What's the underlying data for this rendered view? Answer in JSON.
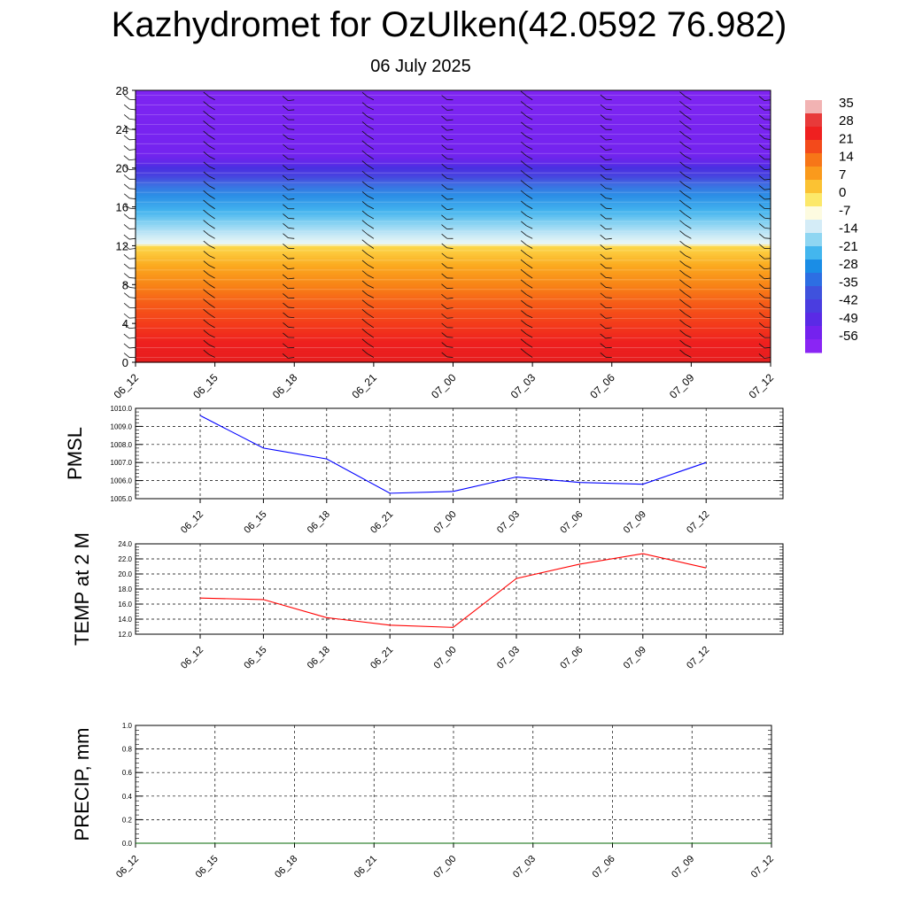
{
  "title": "Kazhydromet for OzUlken(42.0592 76.982)",
  "subtitle": "06 July 2025",
  "chart_data": [
    {
      "type": "heatmap",
      "name": "cross-section",
      "x_ticks": [
        "06_12",
        "06_15",
        "06_18",
        "06_21",
        "07_00",
        "07_03",
        "07_06",
        "07_09",
        "07_12"
      ],
      "y_ticks": [
        "0",
        "4",
        "8",
        "12",
        "16",
        "20",
        "24",
        "28"
      ],
      "ylim": [
        0,
        28
      ],
      "colorbar": {
        "labels": [
          "35",
          "28",
          "21",
          "14",
          "7",
          "0",
          "-7",
          "-14",
          "-21",
          "-28",
          "-35",
          "-42",
          "-49",
          "-56"
        ],
        "colors": [
          "#f2b3b3",
          "#e83a3a",
          "#ef2020",
          "#f34a1b",
          "#f77618",
          "#fa9a1c",
          "#fbc233",
          "#fce86a",
          "#fdfbe0",
          "#d4ecf7",
          "#8fd6f2",
          "#43b6ee",
          "#1a8de6",
          "#2d6ee3",
          "#3f52dd",
          "#4a3de0",
          "#5a2ae6",
          "#7422ee",
          "#8a25f4"
        ]
      },
      "vertical_profile": [
        {
          "h": 0,
          "t": 33
        },
        {
          "h": 2,
          "t": 28
        },
        {
          "h": 4,
          "t": 20
        },
        {
          "h": 6,
          "t": 14
        },
        {
          "h": 8,
          "t": 9
        },
        {
          "h": 10,
          "t": 4
        },
        {
          "h": 12,
          "t": 0
        },
        {
          "h": 12.2,
          "t": -15
        },
        {
          "h": 14,
          "t": -24
        },
        {
          "h": 16,
          "t": -34
        },
        {
          "h": 18,
          "t": -44
        },
        {
          "h": 19.5,
          "t": -54
        },
        {
          "h": 20.5,
          "t": -57
        },
        {
          "h": 21.5,
          "t": -58
        },
        {
          "h": 28,
          "t": -60
        }
      ]
    },
    {
      "type": "line",
      "ylabel": "PMSL",
      "categories": [
        "06_12",
        "06_15",
        "06_18",
        "06_21",
        "07_00",
        "07_03",
        "07_06",
        "07_09",
        "07_12"
      ],
      "values": [
        1009.6,
        1007.8,
        1007.2,
        1005.3,
        1005.4,
        1006.2,
        1005.9,
        1005.8,
        1007.0
      ],
      "ylim": [
        1005.0,
        1010.0
      ],
      "y_ticks": [
        "1005.0",
        "1006.0",
        "1007.0",
        "1008.0",
        "1009.0",
        "1010.0"
      ],
      "color": "#0000ff"
    },
    {
      "type": "line",
      "ylabel": "TEMP at 2 M",
      "categories": [
        "06_12",
        "06_15",
        "06_18",
        "06_21",
        "07_00",
        "07_03",
        "07_06",
        "07_09",
        "07_12"
      ],
      "values": [
        16.8,
        16.6,
        14.2,
        13.2,
        12.9,
        19.4,
        21.3,
        22.7,
        20.8
      ],
      "ylim": [
        12.0,
        24.0
      ],
      "y_ticks": [
        "12.0",
        "14.0",
        "16.0",
        "18.0",
        "20.0",
        "22.0",
        "24.0"
      ],
      "color": "#ff0000"
    },
    {
      "type": "line",
      "ylabel": "PRECIP, mm",
      "categories": [
        "06_12",
        "06_15",
        "06_18",
        "06_21",
        "07_00",
        "07_03",
        "07_06",
        "07_09",
        "07_12"
      ],
      "values": [
        0,
        0,
        0,
        0,
        0,
        0,
        0,
        0,
        0
      ],
      "ylim": [
        0.0,
        1.0
      ],
      "y_ticks": [
        "0.0",
        "0.2",
        "0.4",
        "0.6",
        "0.8",
        "1.0"
      ],
      "color": "#006400"
    }
  ]
}
